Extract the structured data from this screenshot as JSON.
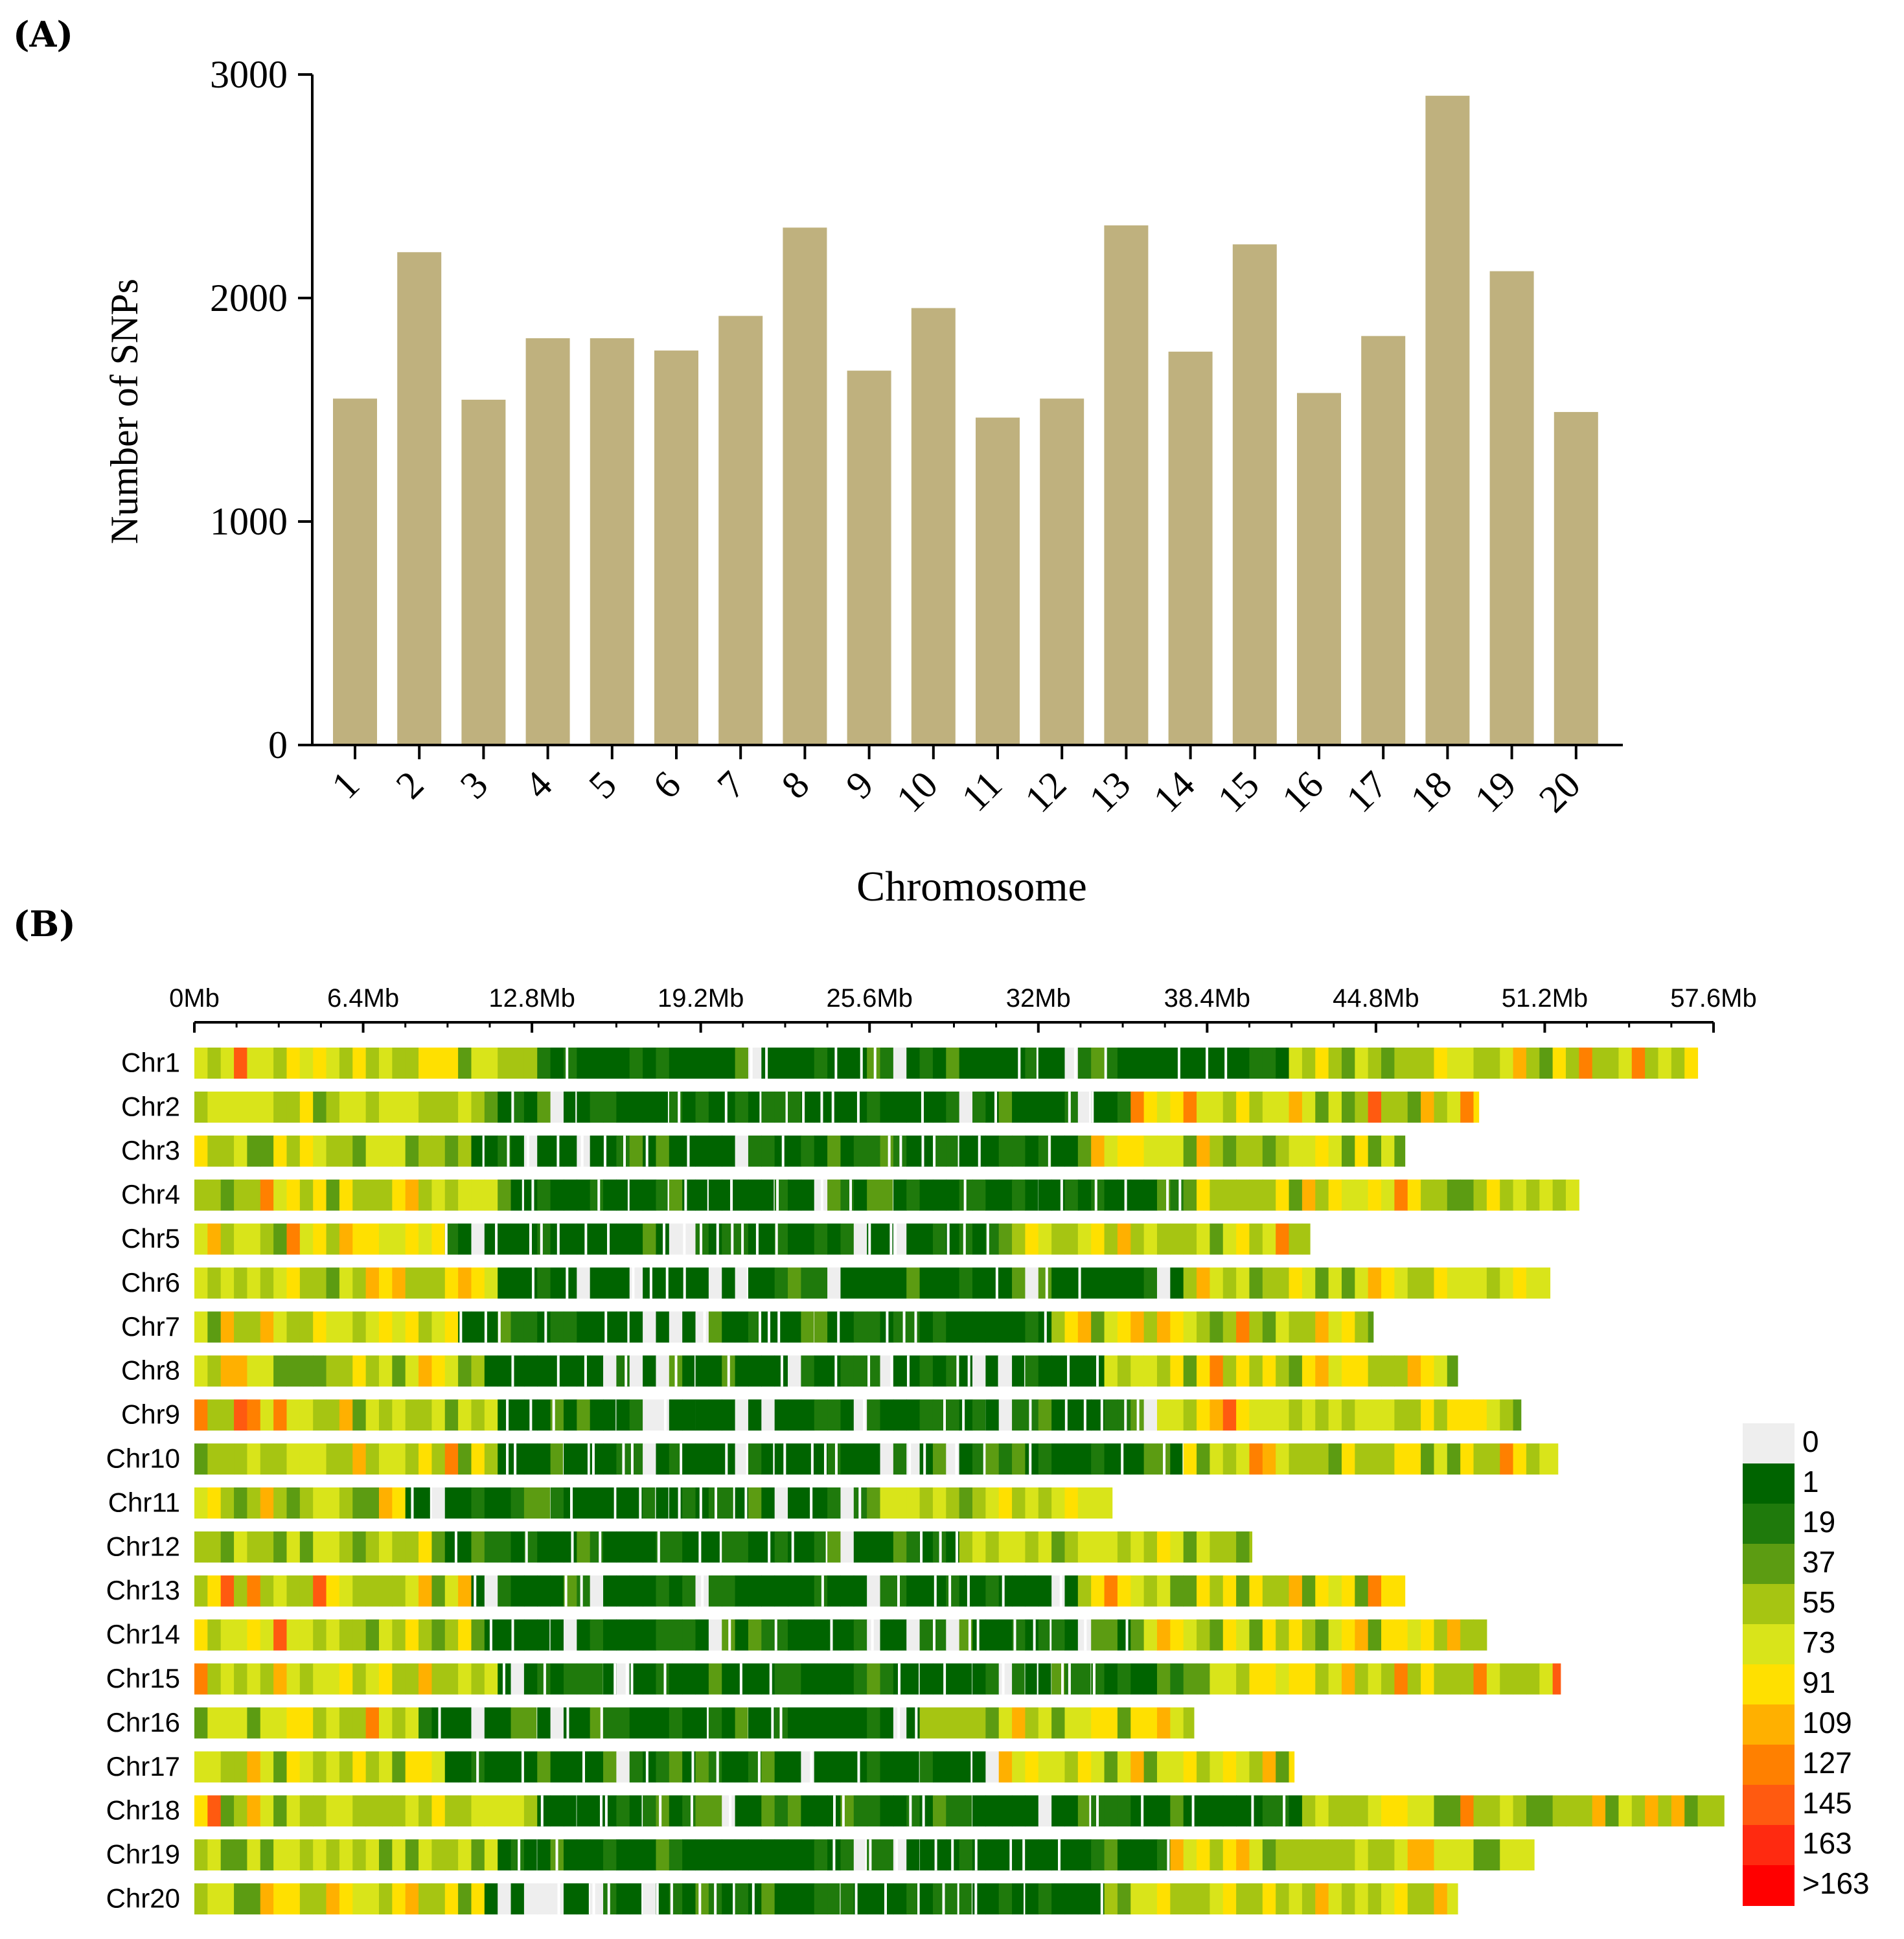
{
  "chart_data": [
    {
      "panel_label": "(A)",
      "type": "bar",
      "xlabel": "Chromosome",
      "ylabel": "Number of SNPs",
      "ylim": [
        0,
        3000
      ],
      "yticks": [
        "0",
        "1000",
        "2000",
        "3000"
      ],
      "categories": [
        "1",
        "2",
        "3",
        "4",
        "5",
        "6",
        "7",
        "8",
        "9",
        "10",
        "11",
        "12",
        "13",
        "14",
        "15",
        "16",
        "17",
        "18",
        "19",
        "20"
      ],
      "values": [
        1550,
        2205,
        1545,
        1820,
        1820,
        1765,
        1920,
        2315,
        1675,
        1955,
        1465,
        1550,
        2325,
        1760,
        2240,
        1575,
        1830,
        2905,
        2120,
        1490
      ],
      "bar_color": "#bfb17e"
    },
    {
      "panel_label": "(B)",
      "type": "heatmap",
      "xlabel": "",
      "x_tick_labels": [
        "0Mb",
        "6.4Mb",
        "12.8Mb",
        "19.2Mb",
        "25.6Mb",
        "32Mb",
        "38.4Mb",
        "44.8Mb",
        "51.2Mb",
        "57.6Mb"
      ],
      "x_range_mb": [
        0,
        57.6
      ],
      "window_mb": 1,
      "chromosomes": [
        {
          "name": "Chr1",
          "length_mb": 57.0
        },
        {
          "name": "Chr2",
          "length_mb": 48.7
        },
        {
          "name": "Chr3",
          "length_mb": 45.9
        },
        {
          "name": "Chr4",
          "length_mb": 52.5
        },
        {
          "name": "Chr5",
          "length_mb": 42.3
        },
        {
          "name": "Chr6",
          "length_mb": 51.4
        },
        {
          "name": "Chr7",
          "length_mb": 44.7
        },
        {
          "name": "Chr8",
          "length_mb": 47.9
        },
        {
          "name": "Chr9",
          "length_mb": 50.3
        },
        {
          "name": "Chr10",
          "length_mb": 51.7
        },
        {
          "name": "Chr11",
          "length_mb": 34.8
        },
        {
          "name": "Chr12",
          "length_mb": 40.1
        },
        {
          "name": "Chr13",
          "length_mb": 45.9
        },
        {
          "name": "Chr14",
          "length_mb": 49.0
        },
        {
          "name": "Chr15",
          "length_mb": 51.8
        },
        {
          "name": "Chr16",
          "length_mb": 37.9
        },
        {
          "name": "Chr17",
          "length_mb": 41.7
        },
        {
          "name": "Chr18",
          "length_mb": 58.0
        },
        {
          "name": "Chr19",
          "length_mb": 50.8
        },
        {
          "name": "Chr20",
          "length_mb": 47.9
        }
      ],
      "legend": {
        "labels": [
          "0",
          "1",
          "19",
          "37",
          "55",
          "73",
          "91",
          "109",
          "127",
          "145",
          "163",
          ">163"
        ],
        "colors": [
          "#eeeeee",
          "#006400",
          "#1f7a0c",
          "#5c9c12",
          "#a6c512",
          "#d9e41a",
          "#ffe000",
          "#ffb000",
          "#ff8000",
          "#ff5a10",
          "#ff2a10",
          "#ff0000"
        ]
      }
    }
  ]
}
